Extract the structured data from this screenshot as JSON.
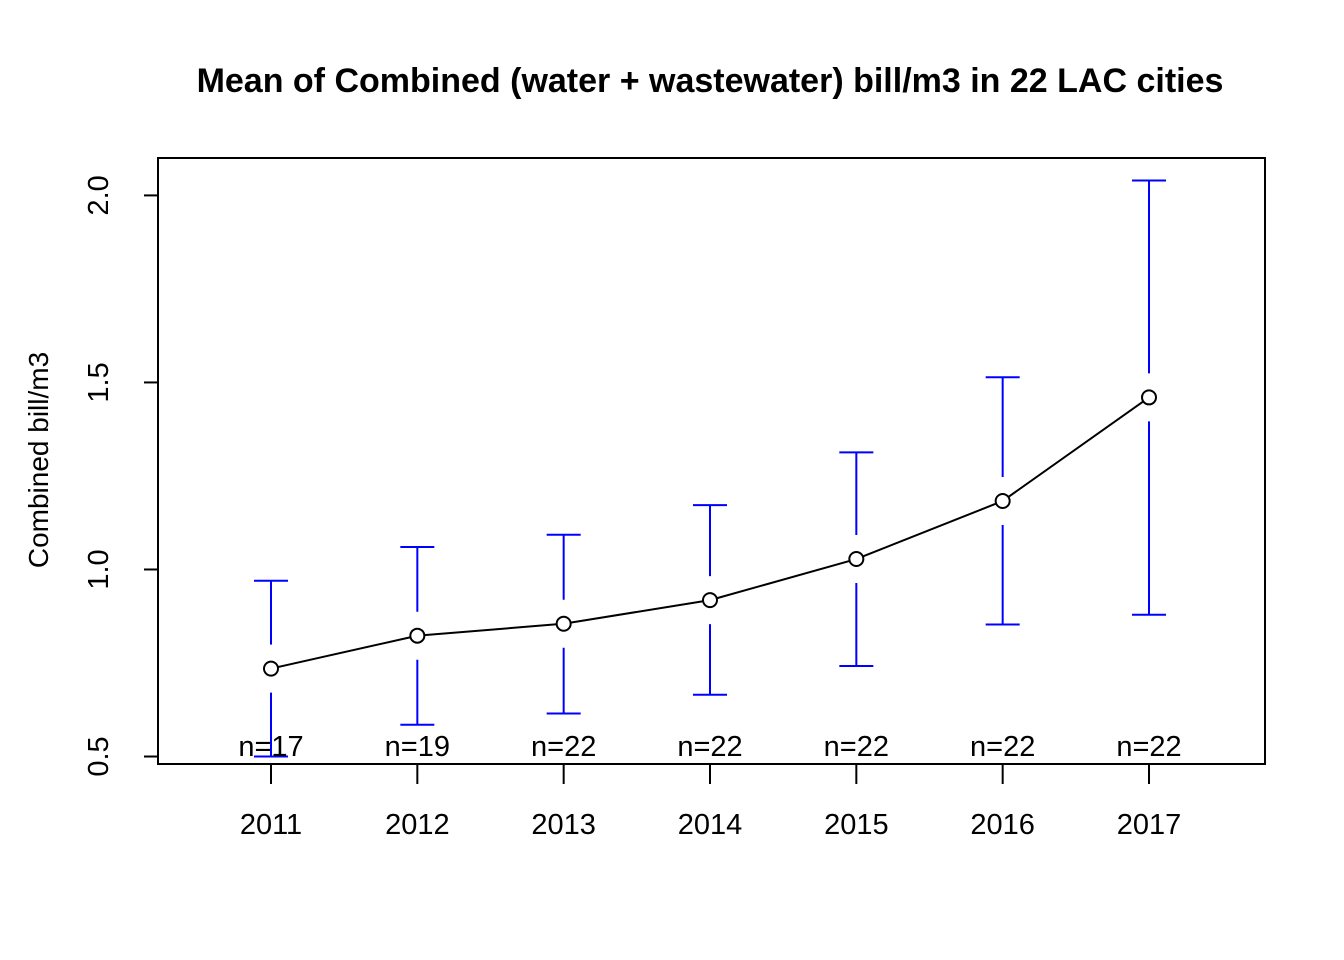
{
  "chart_data": {
    "type": "line",
    "title": "Mean of Combined (water + wastewater) bill/m3 in 22 LAC cities",
    "xlabel": "",
    "ylabel": "Combined bill/m3",
    "categories": [
      "2011",
      "2012",
      "2013",
      "2014",
      "2015",
      "2016",
      "2017"
    ],
    "series": [
      {
        "values": [
          0.735,
          0.823,
          0.855,
          0.918,
          1.028,
          1.183,
          1.46
        ],
        "lower": [
          0.5,
          0.585,
          0.615,
          0.665,
          0.742,
          0.853,
          0.879
        ],
        "upper": [
          0.97,
          1.06,
          1.093,
          1.172,
          1.313,
          1.514,
          2.04
        ],
        "n_labels": [
          "n=17",
          "n=19",
          "n=22",
          "n=22",
          "n=22",
          "n=22",
          "n=22"
        ]
      }
    ],
    "ylim": [
      0.48,
      2.1
    ],
    "yticks": [
      "0.5",
      "1.0",
      "1.5",
      "2.0"
    ],
    "grid": false,
    "legend": "none",
    "colors": {
      "line": "#000000",
      "error_bars": "#0000ff"
    }
  }
}
